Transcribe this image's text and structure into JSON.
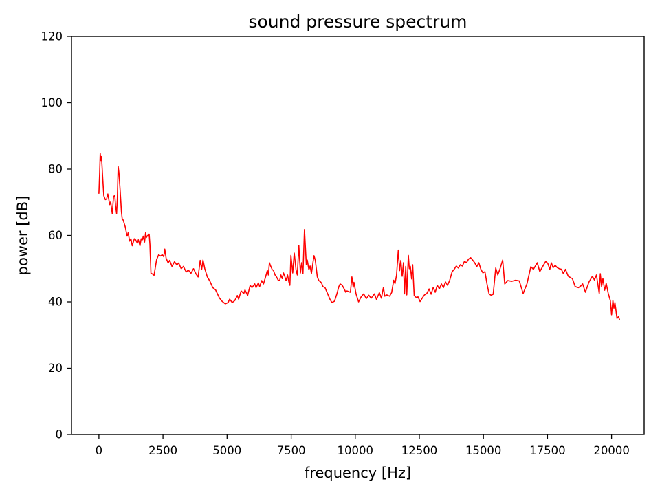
{
  "figure": {
    "background": "#ffffff",
    "text_color": "#000000",
    "spine_color": "#000000"
  },
  "chart_data": {
    "type": "line",
    "title": "sound pressure spectrum",
    "xlabel": "frequency [Hz]",
    "ylabel": "power [dB]",
    "xlim": [
      -1070,
      21270
    ],
    "ylim": [
      0,
      120
    ],
    "x_ticks": [
      0,
      2500,
      5000,
      7500,
      10000,
      12500,
      15000,
      17500,
      20000
    ],
    "y_ticks": [
      0,
      20,
      40,
      60,
      80,
      100,
      120
    ],
    "grid": false,
    "legend": "none",
    "line_color": "#ff0000",
    "series": [
      {
        "name": "sound pressure spectrum",
        "points": [
          [
            0,
            72.7
          ],
          [
            30,
            79.0
          ],
          [
            50,
            84.8
          ],
          [
            70,
            82.6
          ],
          [
            90,
            83.8
          ],
          [
            110,
            82.6
          ],
          [
            150,
            77.0
          ],
          [
            190,
            72.0
          ],
          [
            250,
            70.8
          ],
          [
            300,
            71.0
          ],
          [
            350,
            72.5
          ],
          [
            420,
            69.3
          ],
          [
            460,
            70.1
          ],
          [
            520,
            66.6
          ],
          [
            570,
            71.8
          ],
          [
            620,
            72.0
          ],
          [
            650,
            69.0
          ],
          [
            690,
            66.6
          ],
          [
            720,
            71.0
          ],
          [
            750,
            80.8
          ],
          [
            780,
            79.0
          ],
          [
            830,
            73.5
          ],
          [
            880,
            67.0
          ],
          [
            910,
            65.0
          ],
          [
            950,
            64.6
          ],
          [
            1030,
            62.5
          ],
          [
            1100,
            59.8
          ],
          [
            1140,
            60.8
          ],
          [
            1200,
            58.3
          ],
          [
            1250,
            59.0
          ],
          [
            1300,
            56.9
          ],
          [
            1380,
            59.0
          ],
          [
            1430,
            58.7
          ],
          [
            1500,
            57.7
          ],
          [
            1540,
            58.7
          ],
          [
            1600,
            56.9
          ],
          [
            1650,
            59.0
          ],
          [
            1700,
            58.7
          ],
          [
            1730,
            59.8
          ],
          [
            1780,
            58.0
          ],
          [
            1820,
            60.8
          ],
          [
            1850,
            59.4
          ],
          [
            1900,
            60.0
          ],
          [
            1930,
            59.8
          ],
          [
            1960,
            60.4
          ],
          [
            1990,
            57.3
          ],
          [
            2030,
            48.6
          ],
          [
            2090,
            48.4
          ],
          [
            2150,
            48.0
          ],
          [
            2250,
            52.7
          ],
          [
            2330,
            54.2
          ],
          [
            2400,
            53.8
          ],
          [
            2470,
            54.2
          ],
          [
            2530,
            53.6
          ],
          [
            2570,
            55.9
          ],
          [
            2620,
            53.2
          ],
          [
            2700,
            51.7
          ],
          [
            2760,
            52.5
          ],
          [
            2850,
            50.7
          ],
          [
            2950,
            52.1
          ],
          [
            3040,
            51.1
          ],
          [
            3110,
            51.7
          ],
          [
            3210,
            50.0
          ],
          [
            3300,
            50.7
          ],
          [
            3400,
            49.0
          ],
          [
            3490,
            49.6
          ],
          [
            3590,
            48.6
          ],
          [
            3690,
            50.0
          ],
          [
            3790,
            48.4
          ],
          [
            3870,
            47.5
          ],
          [
            3950,
            52.5
          ],
          [
            4010,
            49.8
          ],
          [
            4060,
            52.6
          ],
          [
            4130,
            50.0
          ],
          [
            4230,
            47.5
          ],
          [
            4330,
            46.2
          ],
          [
            4440,
            44.3
          ],
          [
            4550,
            43.6
          ],
          [
            4700,
            41.2
          ],
          [
            4800,
            40.2
          ],
          [
            4930,
            39.4
          ],
          [
            5040,
            39.8
          ],
          [
            5100,
            40.8
          ],
          [
            5200,
            39.8
          ],
          [
            5300,
            40.4
          ],
          [
            5400,
            41.9
          ],
          [
            5450,
            40.8
          ],
          [
            5550,
            43.3
          ],
          [
            5650,
            42.5
          ],
          [
            5700,
            43.6
          ],
          [
            5800,
            41.9
          ],
          [
            5900,
            45.0
          ],
          [
            5970,
            44.3
          ],
          [
            6080,
            45.4
          ],
          [
            6130,
            44.3
          ],
          [
            6220,
            45.7
          ],
          [
            6270,
            44.6
          ],
          [
            6350,
            46.4
          ],
          [
            6420,
            45.4
          ],
          [
            6510,
            47.7
          ],
          [
            6570,
            49.5
          ],
          [
            6610,
            48.1
          ],
          [
            6650,
            51.8
          ],
          [
            6700,
            50.8
          ],
          [
            6760,
            49.7
          ],
          [
            6810,
            49.5
          ],
          [
            6870,
            48.1
          ],
          [
            6930,
            47.5
          ],
          [
            6990,
            46.6
          ],
          [
            7050,
            46.4
          ],
          [
            7100,
            48.1
          ],
          [
            7150,
            47.0
          ],
          [
            7200,
            48.7
          ],
          [
            7250,
            47.7
          ],
          [
            7300,
            46.4
          ],
          [
            7360,
            48.1
          ],
          [
            7410,
            46.0
          ],
          [
            7450,
            45.0
          ],
          [
            7490,
            54.0
          ],
          [
            7560,
            48.7
          ],
          [
            7620,
            54.7
          ],
          [
            7690,
            49.7
          ],
          [
            7740,
            48.1
          ],
          [
            7800,
            57.0
          ],
          [
            7860,
            48.7
          ],
          [
            7910,
            51.8
          ],
          [
            7960,
            48.5
          ],
          [
            8020,
            61.8
          ],
          [
            8090,
            51.2
          ],
          [
            8130,
            52.6
          ],
          [
            8190,
            49.7
          ],
          [
            8240,
            50.8
          ],
          [
            8290,
            48.5
          ],
          [
            8390,
            53.9
          ],
          [
            8440,
            52.6
          ],
          [
            8520,
            47.5
          ],
          [
            8580,
            46.4
          ],
          [
            8650,
            46.0
          ],
          [
            8690,
            45.6
          ],
          [
            8740,
            44.6
          ],
          [
            8820,
            44.3
          ],
          [
            8930,
            42.3
          ],
          [
            9010,
            40.8
          ],
          [
            9090,
            39.8
          ],
          [
            9190,
            40.2
          ],
          [
            9280,
            42.3
          ],
          [
            9360,
            44.6
          ],
          [
            9410,
            45.4
          ],
          [
            9490,
            45.0
          ],
          [
            9570,
            43.9
          ],
          [
            9630,
            42.9
          ],
          [
            9680,
            43.3
          ],
          [
            9810,
            42.9
          ],
          [
            9870,
            47.5
          ],
          [
            9920,
            44.4
          ],
          [
            9950,
            45.9
          ],
          [
            10030,
            42.4
          ],
          [
            10130,
            40.0
          ],
          [
            10230,
            41.5
          ],
          [
            10330,
            42.4
          ],
          [
            10430,
            41.0
          ],
          [
            10530,
            42.0
          ],
          [
            10620,
            41.1
          ],
          [
            10750,
            42.4
          ],
          [
            10830,
            40.7
          ],
          [
            10940,
            42.8
          ],
          [
            11020,
            41.1
          ],
          [
            11100,
            44.4
          ],
          [
            11150,
            41.7
          ],
          [
            11230,
            42.1
          ],
          [
            11340,
            41.7
          ],
          [
            11420,
            42.8
          ],
          [
            11500,
            46.5
          ],
          [
            11550,
            45.5
          ],
          [
            11610,
            48.0
          ],
          [
            11680,
            55.6
          ],
          [
            11730,
            49.4
          ],
          [
            11780,
            52.5
          ],
          [
            11830,
            47.7
          ],
          [
            11880,
            51.8
          ],
          [
            11920,
            42.4
          ],
          [
            11970,
            50.7
          ],
          [
            12010,
            42.1
          ],
          [
            12070,
            54.0
          ],
          [
            12110,
            50.0
          ],
          [
            12150,
            50.7
          ],
          [
            12200,
            46.9
          ],
          [
            12240,
            51.2
          ],
          [
            12300,
            41.9
          ],
          [
            12380,
            41.3
          ],
          [
            12450,
            41.5
          ],
          [
            12530,
            40.1
          ],
          [
            12610,
            41.1
          ],
          [
            12700,
            42.1
          ],
          [
            12790,
            42.5
          ],
          [
            12880,
            43.9
          ],
          [
            12960,
            42.3
          ],
          [
            13040,
            44.3
          ],
          [
            13120,
            42.9
          ],
          [
            13200,
            45.0
          ],
          [
            13280,
            43.9
          ],
          [
            13360,
            45.4
          ],
          [
            13440,
            44.3
          ],
          [
            13520,
            46.0
          ],
          [
            13600,
            45.0
          ],
          [
            13680,
            46.4
          ],
          [
            13780,
            49.1
          ],
          [
            13860,
            49.8
          ],
          [
            13940,
            50.8
          ],
          [
            14020,
            50.2
          ],
          [
            14100,
            51.2
          ],
          [
            14180,
            50.8
          ],
          [
            14260,
            52.2
          ],
          [
            14340,
            51.8
          ],
          [
            14420,
            52.9
          ],
          [
            14500,
            53.3
          ],
          [
            14580,
            52.6
          ],
          [
            14660,
            51.8
          ],
          [
            14740,
            50.6
          ],
          [
            14820,
            51.8
          ],
          [
            14900,
            49.8
          ],
          [
            14980,
            48.7
          ],
          [
            15060,
            49.1
          ],
          [
            15140,
            45.4
          ],
          [
            15220,
            42.4
          ],
          [
            15300,
            42.0
          ],
          [
            15380,
            42.3
          ],
          [
            15480,
            50.2
          ],
          [
            15560,
            48.1
          ],
          [
            15640,
            49.8
          ],
          [
            15750,
            52.6
          ],
          [
            15830,
            45.4
          ],
          [
            15950,
            46.4
          ],
          [
            16100,
            46.2
          ],
          [
            16250,
            46.5
          ],
          [
            16400,
            46.3
          ],
          [
            16550,
            42.5
          ],
          [
            16700,
            45.5
          ],
          [
            16850,
            50.6
          ],
          [
            16950,
            49.8
          ],
          [
            17100,
            51.8
          ],
          [
            17200,
            49.1
          ],
          [
            17300,
            50.5
          ],
          [
            17430,
            52.2
          ],
          [
            17510,
            51.6
          ],
          [
            17590,
            49.8
          ],
          [
            17650,
            51.8
          ],
          [
            17720,
            50.3
          ],
          [
            17800,
            51.0
          ],
          [
            17880,
            50.3
          ],
          [
            17960,
            50.0
          ],
          [
            18040,
            49.8
          ],
          [
            18120,
            48.5
          ],
          [
            18200,
            49.8
          ],
          [
            18310,
            47.7
          ],
          [
            18420,
            47.2
          ],
          [
            18470,
            47.0
          ],
          [
            18580,
            44.6
          ],
          [
            18710,
            44.3
          ],
          [
            18800,
            44.8
          ],
          [
            18870,
            45.4
          ],
          [
            18980,
            42.9
          ],
          [
            19050,
            44.5
          ],
          [
            19120,
            46.0
          ],
          [
            19250,
            47.7
          ],
          [
            19330,
            46.6
          ],
          [
            19410,
            48.1
          ],
          [
            19520,
            42.5
          ],
          [
            19560,
            48.5
          ],
          [
            19610,
            44.6
          ],
          [
            19660,
            47.0
          ],
          [
            19730,
            43.5
          ],
          [
            19790,
            45.6
          ],
          [
            19870,
            42.5
          ],
          [
            19950,
            40.4
          ],
          [
            20000,
            36.1
          ],
          [
            20050,
            40.4
          ],
          [
            20090,
            38.1
          ],
          [
            20130,
            39.8
          ],
          [
            20210,
            35.0
          ],
          [
            20270,
            35.6
          ],
          [
            20310,
            34.6
          ]
        ]
      }
    ]
  }
}
